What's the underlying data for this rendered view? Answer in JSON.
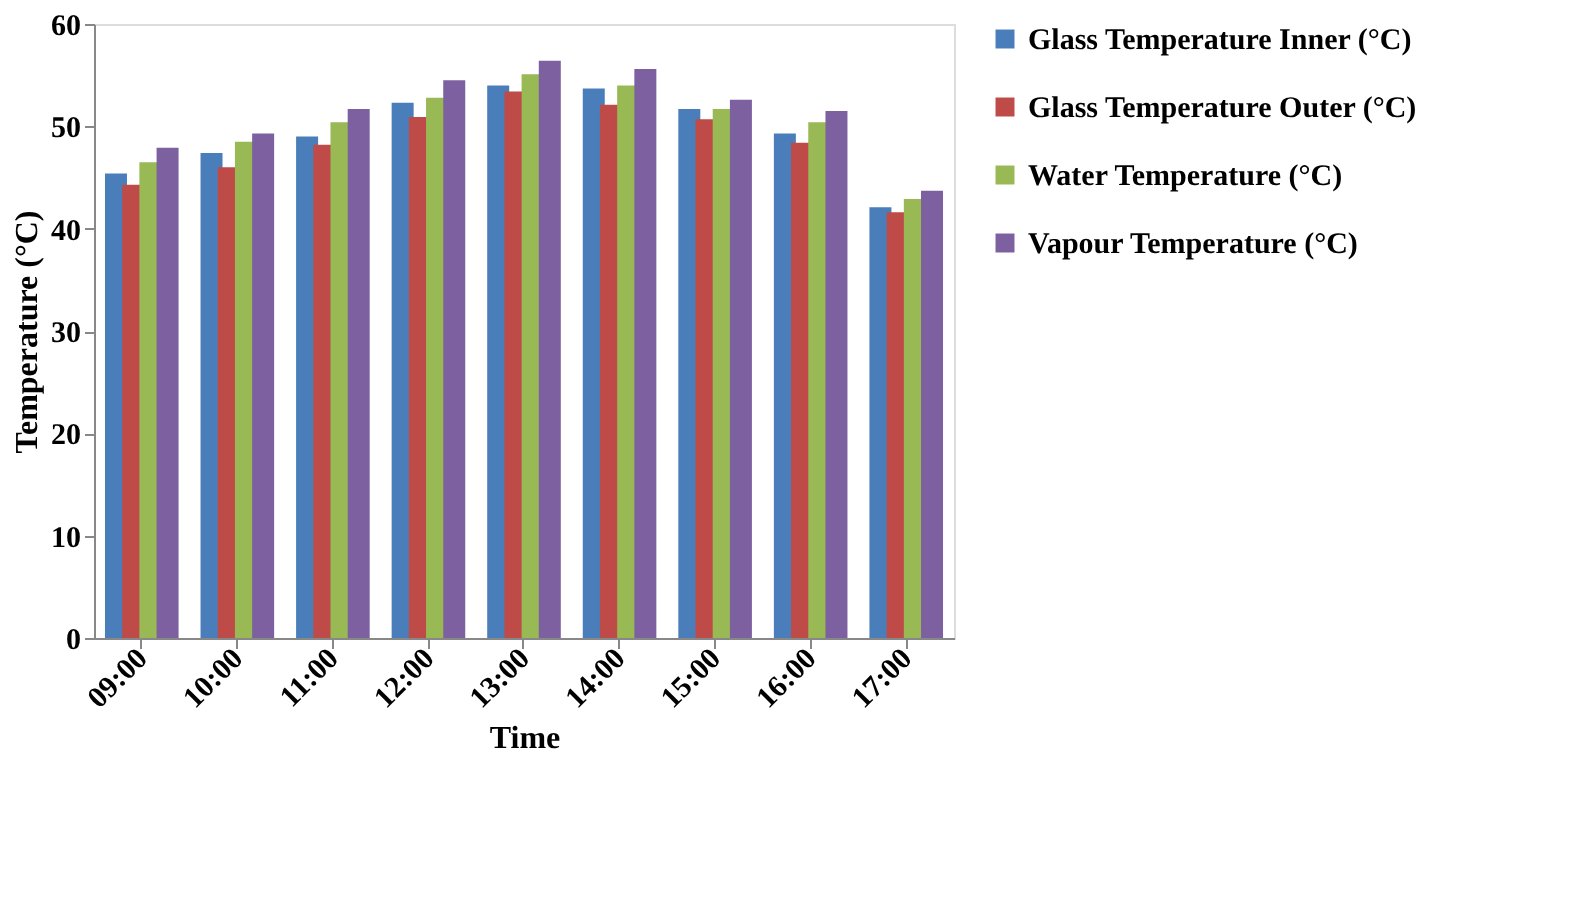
{
  "chart_data": {
    "type": "bar",
    "xlabel": "Time",
    "ylabel": "Temperature  (°C)",
    "categories": [
      "09:00",
      "10:00",
      "11:00",
      "12:00",
      "13:00",
      "14:00",
      "15:00",
      "16:00",
      "17:00"
    ],
    "series": [
      {
        "name": "Glass Temperature  Inner (°C)",
        "color": "#4a7ebb",
        "values": [
          45.4,
          47.4,
          49.0,
          52.3,
          54.0,
          53.7,
          51.7,
          49.3,
          42.1
        ]
      },
      {
        "name": "Glass Temperature  Outer (°C)",
        "color": "#be4b48",
        "values": [
          44.3,
          46.0,
          48.2,
          50.9,
          53.4,
          52.1,
          50.7,
          48.4,
          41.6
        ]
      },
      {
        "name": "Water Temperature  (°C)",
        "color": "#98b954",
        "values": [
          46.5,
          48.5,
          50.4,
          52.8,
          55.1,
          54.0,
          51.7,
          50.4,
          42.9
        ]
      },
      {
        "name": "Vapour Temperature  (°C)",
        "color": "#7d60a0",
        "values": [
          47.9,
          49.3,
          51.7,
          54.5,
          56.4,
          55.6,
          52.6,
          51.5,
          43.7
        ]
      }
    ],
    "ylim": [
      0,
      60
    ],
    "yticks": [
      0,
      10,
      20,
      30,
      40,
      50,
      60
    ],
    "grid": false,
    "legend": "right"
  }
}
